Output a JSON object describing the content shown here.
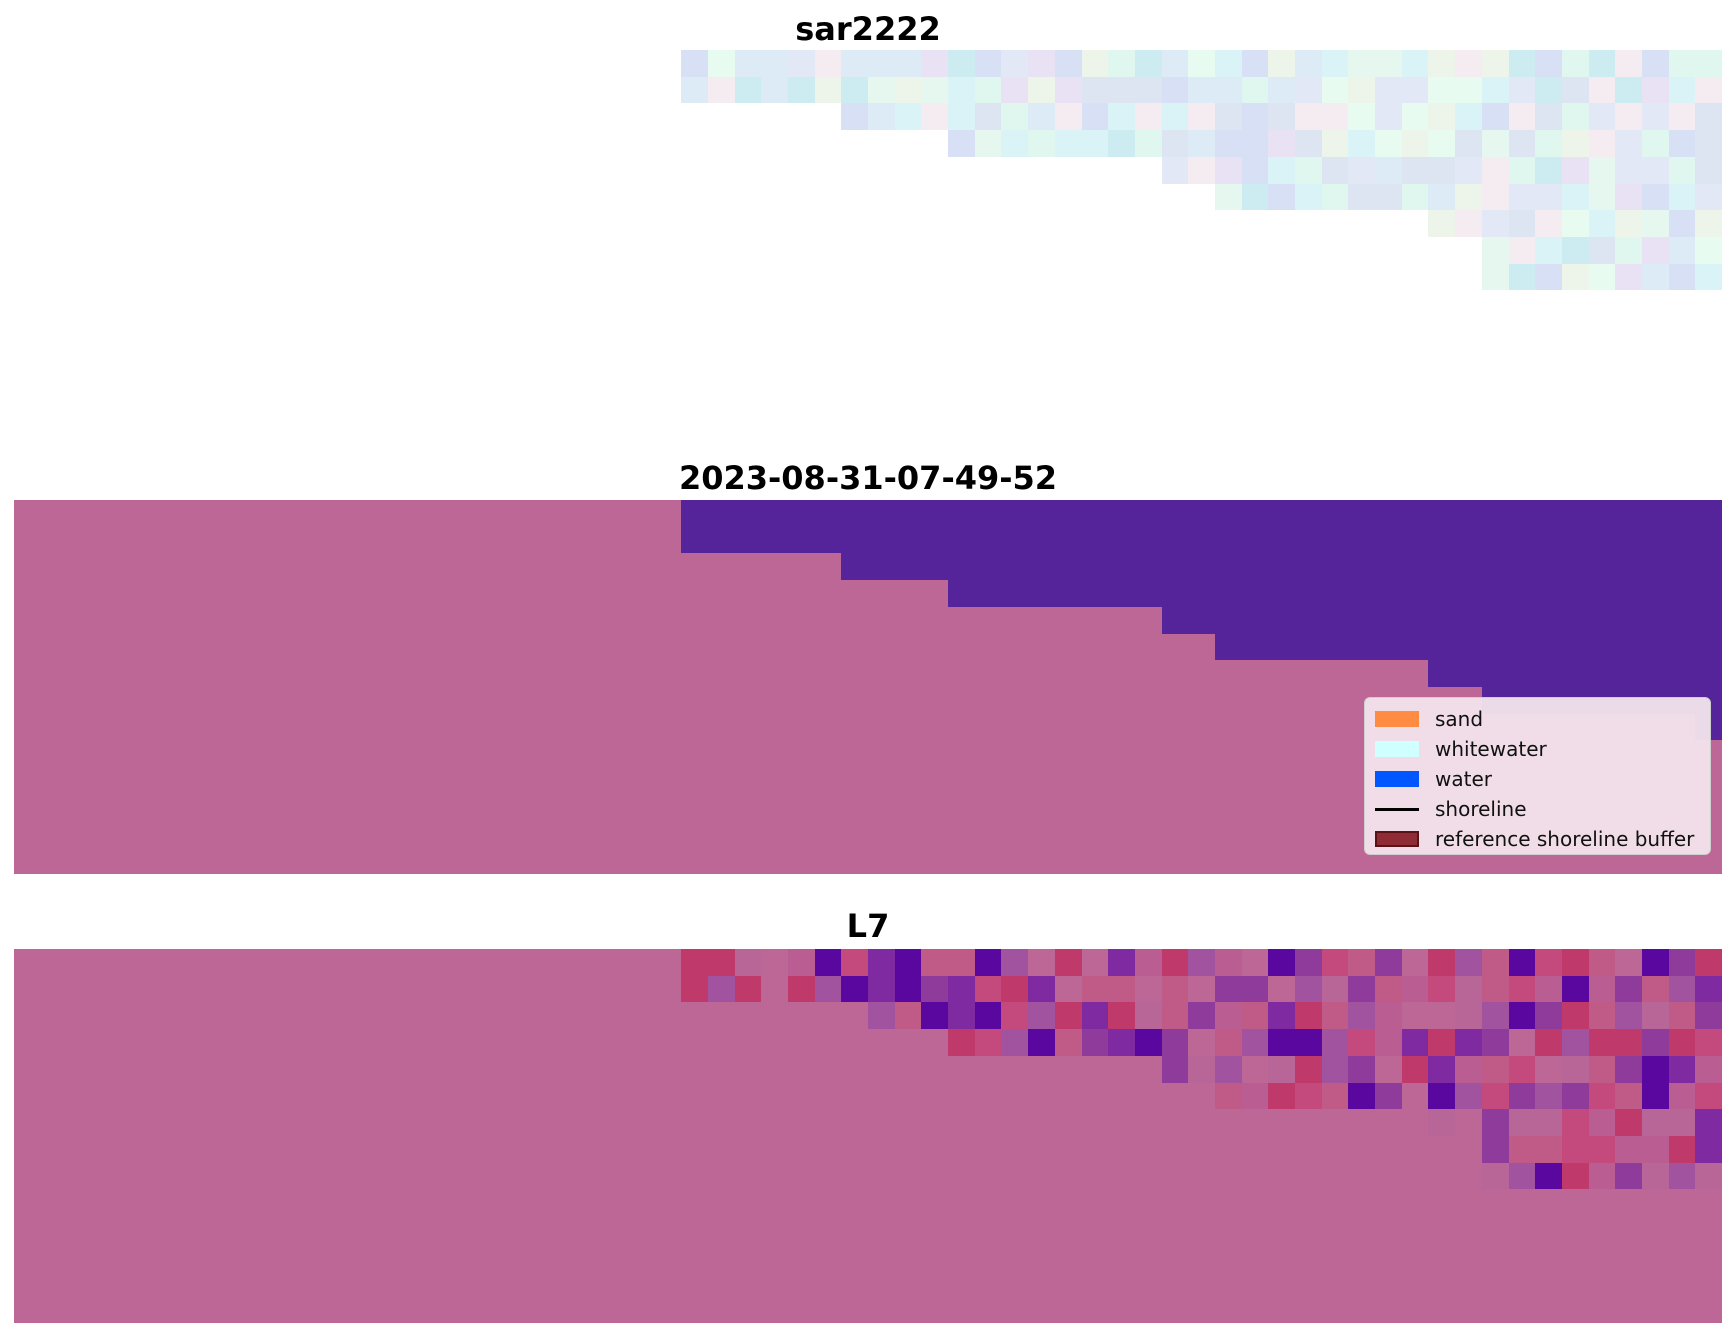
{
  "panels": [
    {
      "title": "sar2222"
    },
    {
      "title": "2023-08-31-07-49-52"
    },
    {
      "title": "L7"
    }
  ],
  "legend": {
    "items": [
      {
        "label": "sand",
        "color": "#ff8c42",
        "type": "patch"
      },
      {
        "label": "whitewater",
        "color": "#cfffff",
        "type": "patch"
      },
      {
        "label": "water",
        "color": "#0057ff",
        "type": "patch"
      },
      {
        "label": "shoreline",
        "color": "#000000",
        "type": "line"
      },
      {
        "label": "reference shoreline buffer",
        "color": "#8e2b34",
        "type": "patch"
      }
    ]
  },
  "colors": {
    "background": "#ffffff",
    "land_overlay": "#bc6795",
    "water_overlay": "#55249a"
  }
}
